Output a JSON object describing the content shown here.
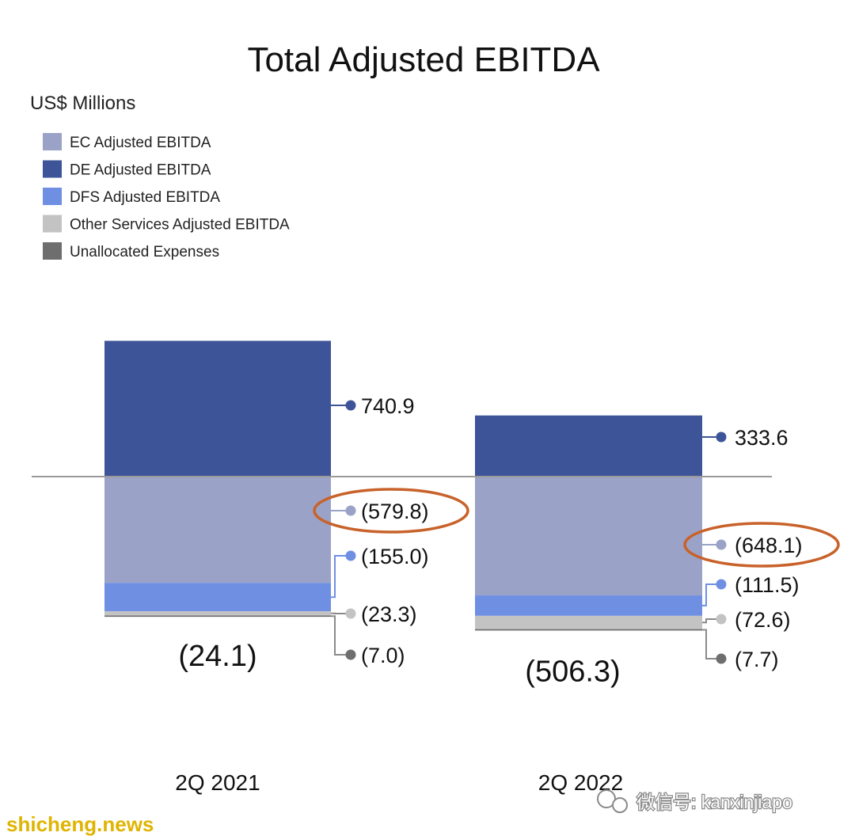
{
  "chart_data": {
    "type": "bar",
    "stacked": true,
    "title": "Total Adjusted EBITDA",
    "unit_label": "US$ Millions",
    "categories": [
      "2Q 2021",
      "2Q 2022"
    ],
    "series": [
      {
        "name": "EC Adjusted EBITDA",
        "color": "#9aa3c7",
        "values": [
          -579.8,
          -648.1
        ],
        "labels": [
          "(579.8)",
          "(648.1)"
        ],
        "highlighted": true
      },
      {
        "name": "DE Adjusted EBITDA",
        "color": "#3d5498",
        "values": [
          740.9,
          333.6
        ],
        "labels": [
          "740.9",
          "333.6"
        ]
      },
      {
        "name": "DFS Adjusted EBITDA",
        "color": "#6f8fe3",
        "values": [
          -155.0,
          -111.5
        ],
        "labels": [
          "(155.0)",
          "(111.5)"
        ]
      },
      {
        "name": "Other Services Adjusted EBITDA",
        "color": "#c3c3c3",
        "values": [
          -23.3,
          -72.6
        ],
        "labels": [
          "(23.3)",
          "(72.6)"
        ]
      },
      {
        "name": "Unallocated Expenses",
        "color": "#6e6e6e",
        "values": [
          -7.0,
          -7.7
        ],
        "labels": [
          "(7.0)",
          "(7.7)"
        ]
      }
    ],
    "totals": [
      -24.1,
      -506.3
    ],
    "total_labels": [
      "(24.1)",
      "(506.3)"
    ],
    "legend_position": "top-left",
    "grid": false,
    "highlight_color": "#c8622a"
  },
  "watermarks": {
    "left": "shicheng.news",
    "right": "微信号: kanxinjiapo"
  }
}
